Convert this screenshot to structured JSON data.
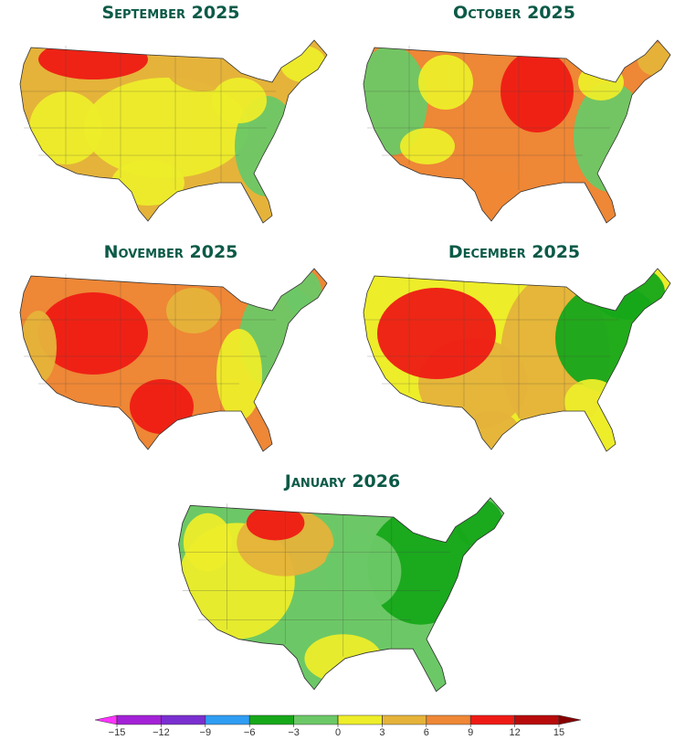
{
  "maps": [
    {
      "title": "September 2025"
    },
    {
      "title": "October 2025"
    },
    {
      "title": "November 2025"
    },
    {
      "title": "December 2025"
    },
    {
      "title": "January 2026"
    }
  ],
  "colorbar": {
    "ticks": [
      {
        "value": -15,
        "label": "−15"
      },
      {
        "value": -12,
        "label": "−12"
      },
      {
        "value": -9,
        "label": "−9"
      },
      {
        "value": -6,
        "label": "−6"
      },
      {
        "value": -3,
        "label": "−3"
      },
      0,
      3,
      6,
      9,
      12,
      15
    ],
    "colors": [
      "#a321d6",
      "#7a2fd0",
      "#2f9df2",
      "#17a81a",
      "#6cc866",
      "#eded2a",
      "#e5b33a",
      "#ee8736",
      "#ee1b14",
      "#b80b0b"
    ],
    "under": "#ff33ff",
    "over": "#870000"
  }
}
